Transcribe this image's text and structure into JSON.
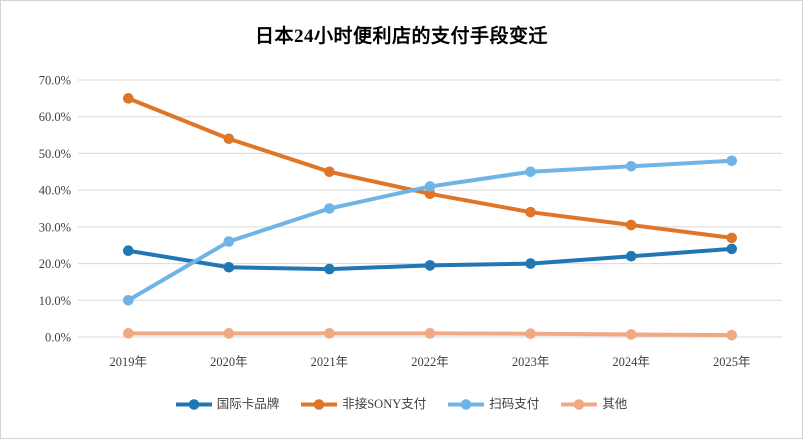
{
  "frame": {
    "background": "#FFFFFF",
    "border_color": "#D4D4D4"
  },
  "chart_data": {
    "type": "line",
    "title": "日本24小时便利店的支付手段变迁",
    "categories": [
      "2019年",
      "2020年",
      "2021年",
      "2022年",
      "2023年",
      "2024年",
      "2025年"
    ],
    "series": [
      {
        "name": "国际卡品牌",
        "color": "#2077B4",
        "values": [
          23.5,
          19.0,
          18.5,
          19.5,
          20.0,
          22.0,
          24.0
        ]
      },
      {
        "name": "非接SONY支付",
        "color": "#DF7527",
        "values": [
          65.0,
          54.0,
          45.0,
          39.0,
          34.0,
          30.5,
          27.0
        ]
      },
      {
        "name": "扫码支付",
        "color": "#6FB4E6",
        "values": [
          10.0,
          26.0,
          35.0,
          41.0,
          45.0,
          46.5,
          48.0
        ]
      },
      {
        "name": "其他",
        "color": "#F1A983",
        "values": [
          1.0,
          1.0,
          1.0,
          1.0,
          0.9,
          0.7,
          0.5
        ]
      }
    ],
    "xlabel": "",
    "ylabel": "",
    "ylim": [
      0,
      70
    ],
    "ytick_labels": [
      "0.0%",
      "10.0%",
      "20.0%",
      "30.0%",
      "40.0%",
      "50.0%",
      "60.0%",
      "70.0%"
    ],
    "grid": "horizontal",
    "gridline_color": "#D9D9D9",
    "tick_label_color": "#404040",
    "legend_position": "bottom"
  }
}
